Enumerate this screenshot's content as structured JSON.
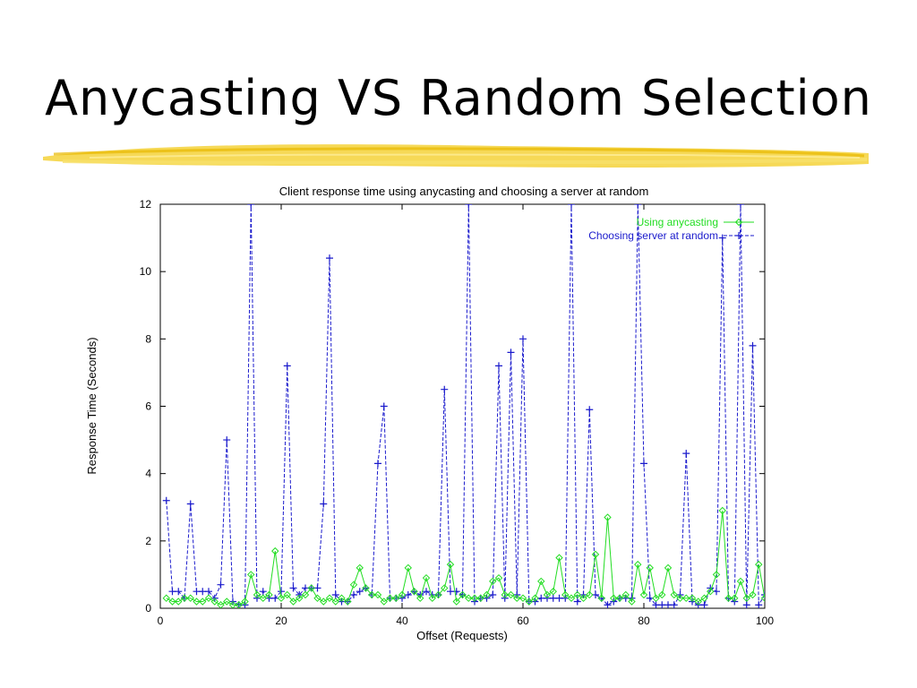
{
  "slide": {
    "title": "Anycasting VS Random Selection"
  },
  "chart_data": {
    "type": "line",
    "title": "Client response time using anycasting and choosing a server at random",
    "xlabel": "Offset (Requests)",
    "ylabel": "Response Time (Seconds)",
    "xlim": [
      0,
      100
    ],
    "ylim": [
      0,
      12
    ],
    "xticks": [
      "0",
      "20",
      "40",
      "60",
      "80",
      "100"
    ],
    "yticks": [
      "0",
      "2",
      "4",
      "6",
      "8",
      "10",
      "12"
    ],
    "grid": false,
    "legend_position": "top-right",
    "x": [
      1,
      2,
      3,
      4,
      5,
      6,
      7,
      8,
      9,
      10,
      11,
      12,
      13,
      14,
      15,
      16,
      17,
      18,
      19,
      20,
      21,
      22,
      23,
      24,
      25,
      26,
      27,
      28,
      29,
      30,
      31,
      32,
      33,
      34,
      35,
      36,
      37,
      38,
      39,
      40,
      41,
      42,
      43,
      44,
      45,
      46,
      47,
      48,
      49,
      50,
      51,
      52,
      53,
      54,
      55,
      56,
      57,
      58,
      59,
      60,
      61,
      62,
      63,
      64,
      65,
      66,
      67,
      68,
      69,
      70,
      71,
      72,
      73,
      74,
      75,
      76,
      77,
      78,
      79,
      80,
      81,
      82,
      83,
      84,
      85,
      86,
      87,
      88,
      89,
      90,
      91,
      92,
      93,
      94,
      95,
      96,
      97,
      98,
      99,
      100
    ],
    "series": [
      {
        "name": "Using anycasting",
        "color": "#22dd22",
        "marker": "diamond",
        "values": [
          0.3,
          0.2,
          0.2,
          0.3,
          0.3,
          0.2,
          0.2,
          0.3,
          0.2,
          0.1,
          0.2,
          0.1,
          0.1,
          0.2,
          1.0,
          0.4,
          0.3,
          0.4,
          1.7,
          0.3,
          0.4,
          0.2,
          0.3,
          0.4,
          0.6,
          0.3,
          0.2,
          0.3,
          0.2,
          0.3,
          0.2,
          0.7,
          1.2,
          0.6,
          0.4,
          0.4,
          0.2,
          0.3,
          0.3,
          0.4,
          1.2,
          0.5,
          0.3,
          0.9,
          0.3,
          0.4,
          0.6,
          1.3,
          0.2,
          0.4,
          0.3,
          0.3,
          0.3,
          0.4,
          0.8,
          0.9,
          0.4,
          0.4,
          0.3,
          0.3,
          0.2,
          0.3,
          0.8,
          0.4,
          0.5,
          1.5,
          0.4,
          0.3,
          0.4,
          0.3,
          0.4,
          1.6,
          0.3,
          2.7,
          0.3,
          0.3,
          0.4,
          0.2,
          1.3,
          0.4,
          1.2,
          0.3,
          0.4,
          1.2,
          0.4,
          0.3,
          0.3,
          0.3,
          0.2,
          0.3,
          0.5,
          1.0,
          2.9,
          0.3,
          0.3,
          0.8,
          0.3,
          0.4,
          1.3,
          0.3
        ]
      },
      {
        "name": "Choosing server at random",
        "color": "#1a1acc",
        "marker": "plus",
        "values": [
          3.2,
          0.5,
          0.5,
          0.3,
          3.1,
          0.5,
          0.5,
          0.5,
          0.3,
          0.7,
          5.0,
          0.2,
          0.1,
          0.1,
          12.0,
          0.3,
          0.5,
          0.3,
          0.3,
          0.5,
          7.2,
          0.6,
          0.4,
          0.6,
          0.6,
          0.6,
          3.1,
          10.4,
          0.4,
          0.2,
          0.2,
          0.4,
          0.5,
          0.6,
          0.4,
          4.3,
          6.0,
          0.3,
          0.3,
          0.3,
          0.4,
          0.5,
          0.4,
          0.5,
          0.4,
          0.4,
          6.5,
          0.5,
          0.5,
          0.4,
          12.0,
          0.2,
          0.3,
          0.3,
          0.4,
          7.2,
          0.3,
          7.6,
          0.4,
          8.0,
          0.2,
          0.2,
          0.3,
          0.3,
          0.3,
          0.3,
          0.3,
          12.0,
          0.2,
          0.4,
          5.9,
          0.4,
          0.3,
          0.1,
          0.2,
          0.3,
          0.3,
          0.3,
          12.0,
          4.3,
          0.3,
          0.1,
          0.1,
          0.1,
          0.1,
          0.4,
          4.6,
          0.2,
          0.1,
          0.1,
          0.6,
          0.5,
          11.0,
          0.3,
          0.2,
          12.0,
          0.1,
          7.8,
          0.1,
          0.4
        ]
      }
    ]
  }
}
